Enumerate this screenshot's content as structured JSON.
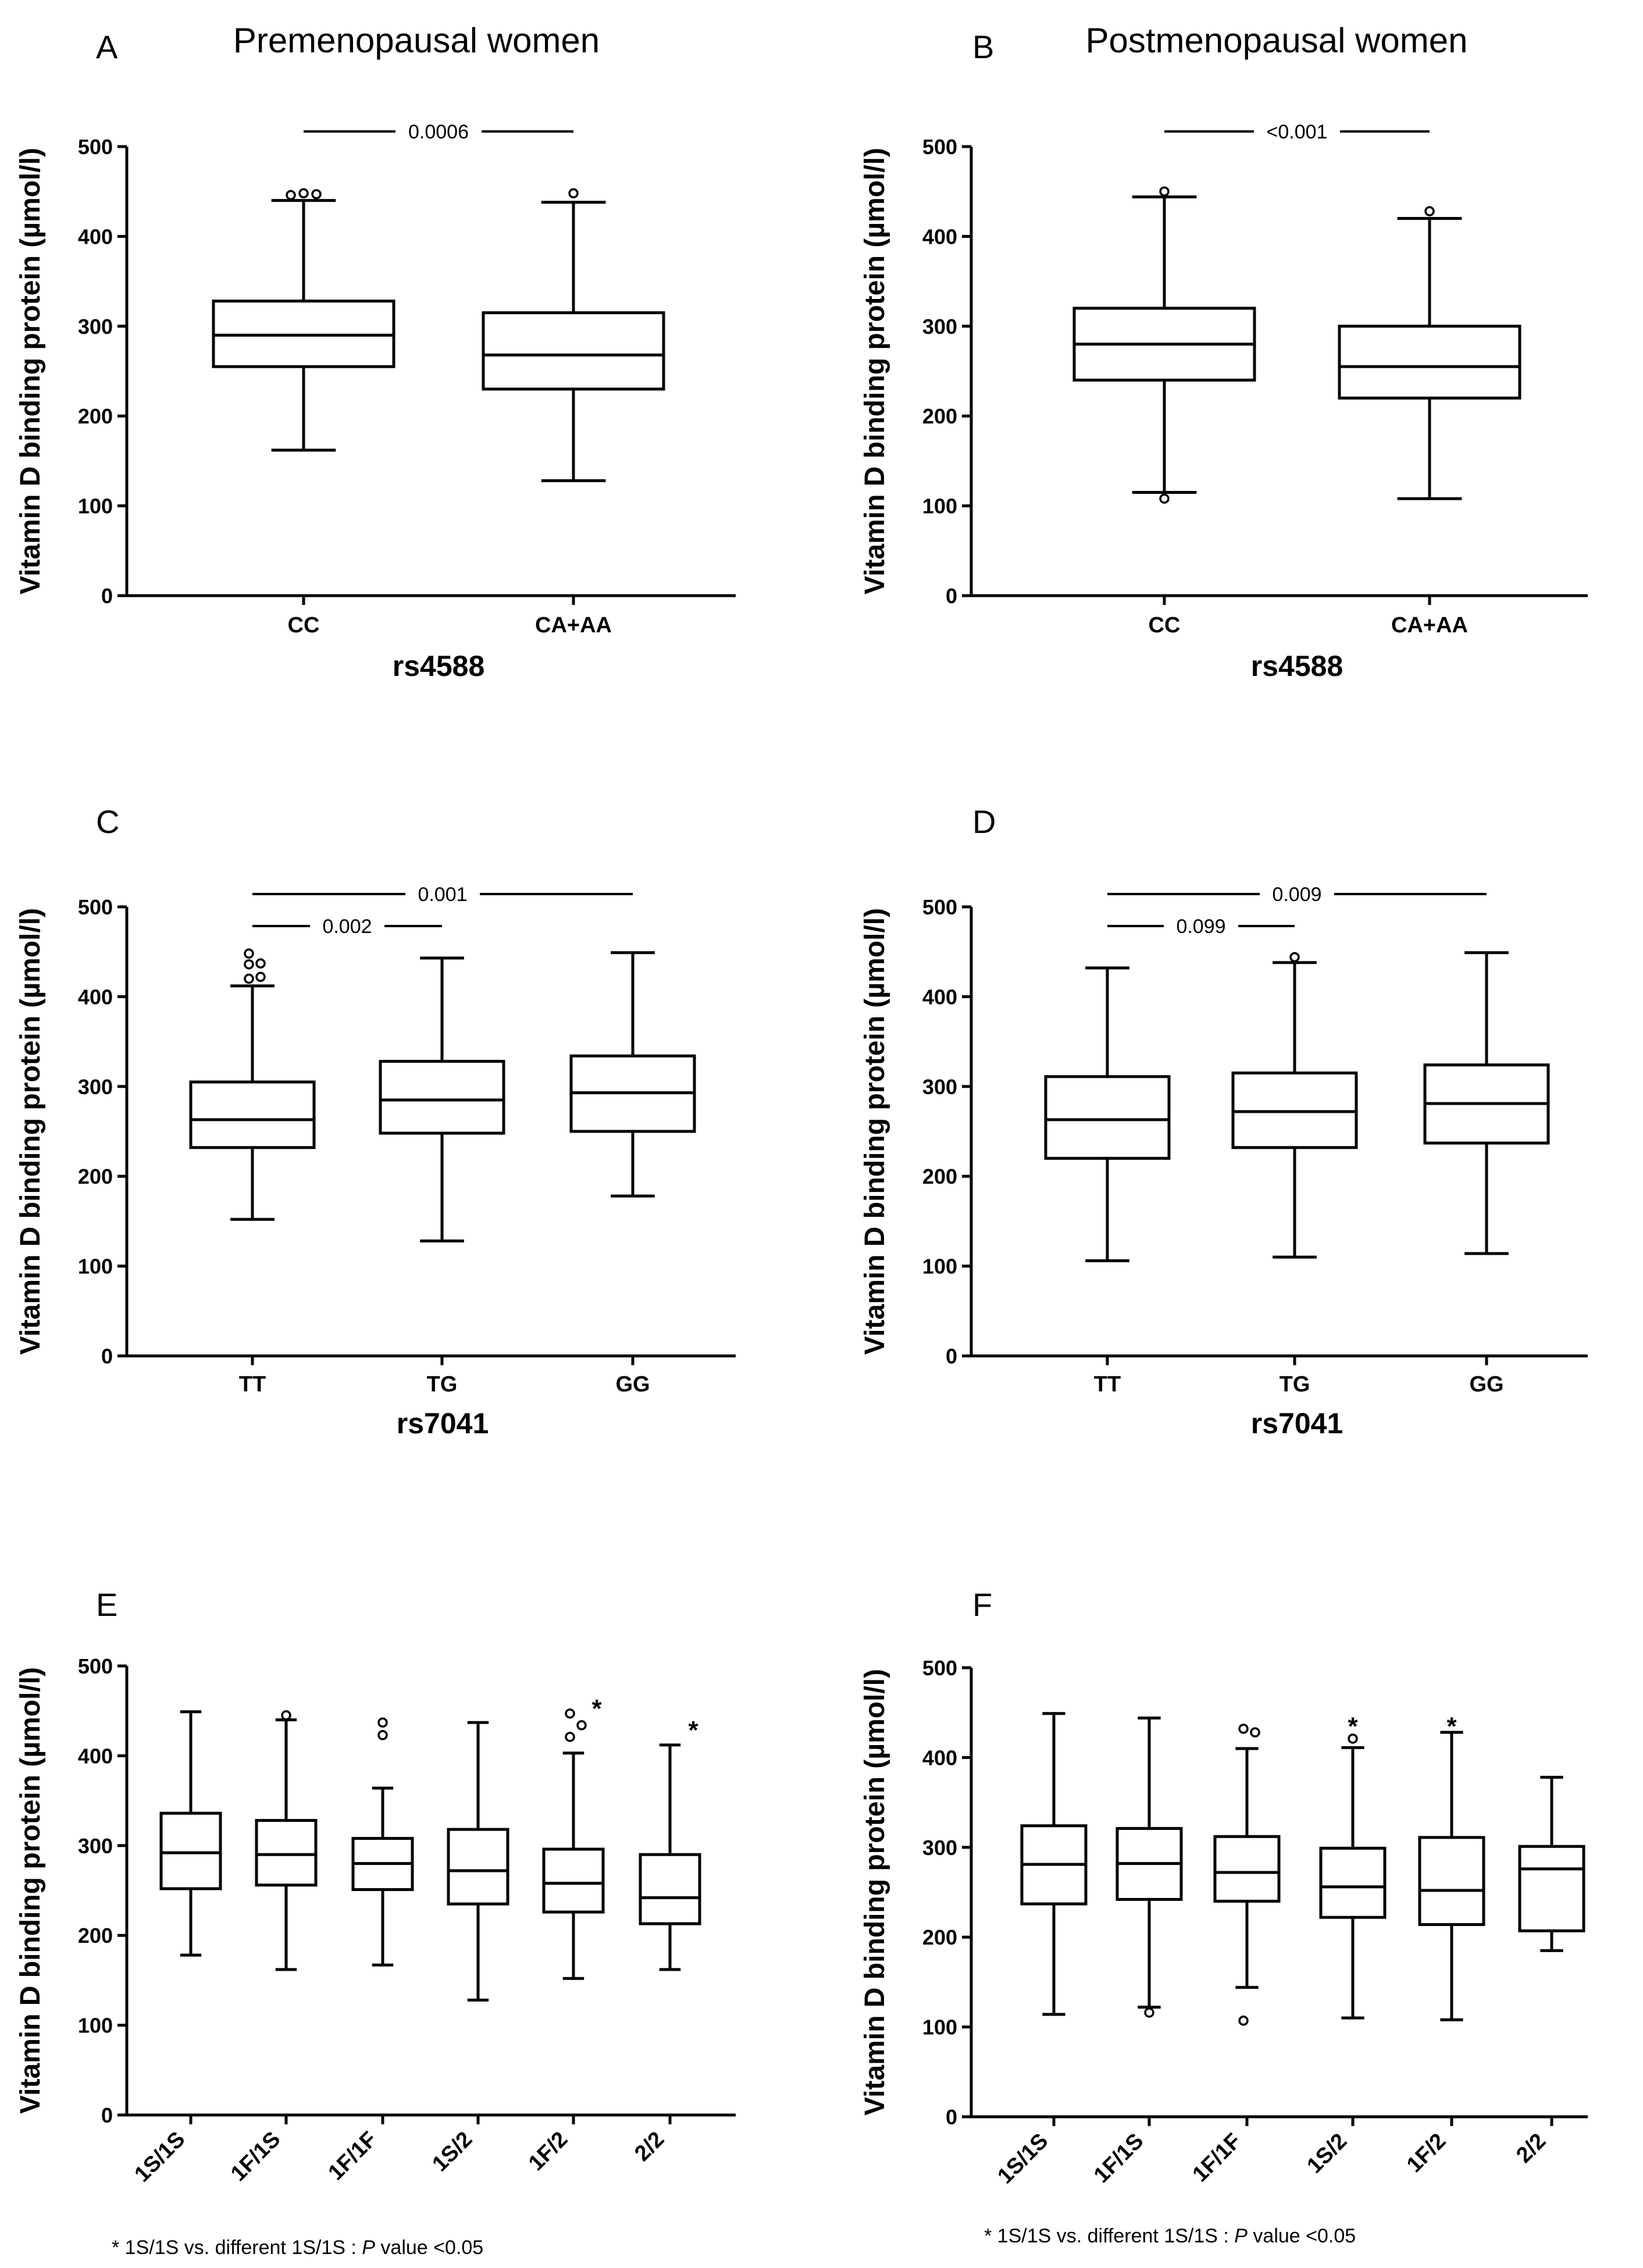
{
  "titles": {
    "left": "Premenopausal women",
    "right": "Postmenopausal women"
  },
  "footnotes": {
    "prefix": "* 1S/1S vs. different 1S/1S : ",
    "p": "P",
    "suffix": " value <0.05"
  },
  "chart_data": [
    {
      "panel": "A",
      "type": "box",
      "title": "Premenopausal women",
      "ylabel": "Vitamin D binding protein (µmol/l)",
      "xlabel": "rs4588",
      "ylim": [
        0,
        500
      ],
      "yticks": [
        0,
        100,
        200,
        300,
        400,
        500
      ],
      "categories": [
        "CC",
        "CA+AA"
      ],
      "boxes": [
        {
          "whisker_low": 162,
          "q1": 255,
          "median": 290,
          "q3": 328,
          "whisker_high": 440,
          "outliers": [
            446,
            448,
            447
          ]
        },
        {
          "whisker_low": 128,
          "q1": 230,
          "median": 268,
          "q3": 315,
          "whisker_high": 438,
          "outliers": [
            448
          ]
        }
      ],
      "comparisons": [
        {
          "from": 0,
          "to": 1,
          "label": "0.0006"
        }
      ],
      "annotations": []
    },
    {
      "panel": "B",
      "type": "box",
      "title": "Postmenopausal women",
      "ylabel": "Vitamin D binding protein (µmol/l)",
      "xlabel": "rs4588",
      "ylim": [
        0,
        500
      ],
      "yticks": [
        0,
        100,
        200,
        300,
        400,
        500
      ],
      "categories": [
        "CC",
        "CA+AA"
      ],
      "boxes": [
        {
          "whisker_low": 115,
          "q1": 240,
          "median": 280,
          "q3": 320,
          "whisker_high": 444,
          "outliers": [
            108,
            450
          ]
        },
        {
          "whisker_low": 108,
          "q1": 220,
          "median": 255,
          "q3": 300,
          "whisker_high": 420,
          "outliers": [
            428
          ]
        }
      ],
      "comparisons": [
        {
          "from": 0,
          "to": 1,
          "label": "<0.001"
        }
      ],
      "annotations": []
    },
    {
      "panel": "C",
      "type": "box",
      "ylabel": "Vitamin D binding protein (µmol/l)",
      "xlabel": "rs7041",
      "ylim": [
        0,
        500
      ],
      "yticks": [
        0,
        100,
        200,
        300,
        400,
        500
      ],
      "categories": [
        "TT",
        "TG",
        "GG"
      ],
      "boxes": [
        {
          "whisker_low": 152,
          "q1": 232,
          "median": 263,
          "q3": 305,
          "whisker_high": 412,
          "outliers": [
            420,
            422,
            436,
            437,
            448
          ]
        },
        {
          "whisker_low": 128,
          "q1": 248,
          "median": 285,
          "q3": 328,
          "whisker_high": 443,
          "outliers": []
        },
        {
          "whisker_low": 178,
          "q1": 250,
          "median": 293,
          "q3": 334,
          "whisker_high": 449,
          "outliers": []
        }
      ],
      "comparisons": [
        {
          "from": 0,
          "to": 2,
          "label": "0.001"
        },
        {
          "from": 0,
          "to": 1,
          "label": "0.002"
        }
      ],
      "annotations": []
    },
    {
      "panel": "D",
      "type": "box",
      "ylabel": "Vitamin D binding protein (µmol/l)",
      "xlabel": "rs7041",
      "ylim": [
        0,
        500
      ],
      "yticks": [
        0,
        100,
        200,
        300,
        400,
        500
      ],
      "categories": [
        "TT",
        "TG",
        "GG"
      ],
      "boxes": [
        {
          "whisker_low": 106,
          "q1": 220,
          "median": 263,
          "q3": 311,
          "whisker_high": 432,
          "outliers": []
        },
        {
          "whisker_low": 110,
          "q1": 232,
          "median": 272,
          "q3": 315,
          "whisker_high": 438,
          "outliers": [
            444
          ]
        },
        {
          "whisker_low": 114,
          "q1": 237,
          "median": 281,
          "q3": 324,
          "whisker_high": 449,
          "outliers": []
        }
      ],
      "comparisons": [
        {
          "from": 0,
          "to": 2,
          "label": "0.009"
        },
        {
          "from": 0,
          "to": 1,
          "label": "0.099"
        }
      ],
      "annotations": []
    },
    {
      "panel": "E",
      "type": "box",
      "ylabel": "Vitamin D binding protein (µmol/l)",
      "xlabel": "",
      "ylim": [
        0,
        500
      ],
      "yticks": [
        0,
        100,
        200,
        300,
        400,
        500
      ],
      "categories": [
        "1S/1S",
        "1F/1S",
        "1F/1F",
        "1S/2",
        "1F/2",
        "2/2"
      ],
      "boxes": [
        {
          "whisker_low": 178,
          "q1": 252,
          "median": 292,
          "q3": 336,
          "whisker_high": 449,
          "outliers": []
        },
        {
          "whisker_low": 162,
          "q1": 256,
          "median": 290,
          "q3": 328,
          "whisker_high": 440,
          "outliers": [
            445
          ]
        },
        {
          "whisker_low": 167,
          "q1": 251,
          "median": 280,
          "q3": 308,
          "whisker_high": 364,
          "outliers": [
            423,
            437
          ]
        },
        {
          "whisker_low": 128,
          "q1": 235,
          "median": 272,
          "q3": 318,
          "whisker_high": 437,
          "outliers": []
        },
        {
          "whisker_low": 152,
          "q1": 226,
          "median": 258,
          "q3": 296,
          "whisker_high": 403,
          "outliers": [
            421,
            434,
            447
          ]
        },
        {
          "whisker_low": 162,
          "q1": 213,
          "median": 242,
          "q3": 290,
          "whisker_high": 412,
          "outliers": []
        }
      ],
      "comparisons": [],
      "annotations": [
        {
          "index": 4,
          "label": "*",
          "value": 456
        },
        {
          "index": 5,
          "label": "*",
          "value": 432
        }
      ]
    },
    {
      "panel": "F",
      "type": "box",
      "ylabel": "Vitamin D binding protein (µmol/l)",
      "xlabel": "",
      "ylim": [
        0,
        500
      ],
      "yticks": [
        0,
        100,
        200,
        300,
        400,
        500
      ],
      "categories": [
        "1S/1S",
        "1F/1S",
        "1F/1F",
        "1S/2",
        "1F/2",
        "2/2"
      ],
      "boxes": [
        {
          "whisker_low": 114,
          "q1": 237,
          "median": 281,
          "q3": 324,
          "whisker_high": 449,
          "outliers": []
        },
        {
          "whisker_low": 122,
          "q1": 242,
          "median": 282,
          "q3": 321,
          "whisker_high": 444,
          "outliers": [
            116
          ]
        },
        {
          "whisker_low": 144,
          "q1": 240,
          "median": 272,
          "q3": 312,
          "whisker_high": 410,
          "outliers": [
            107,
            428,
            432
          ]
        },
        {
          "whisker_low": 110,
          "q1": 222,
          "median": 256,
          "q3": 299,
          "whisker_high": 411,
          "outliers": [
            421
          ]
        },
        {
          "whisker_low": 108,
          "q1": 214,
          "median": 252,
          "q3": 311,
          "whisker_high": 428,
          "outliers": []
        },
        {
          "whisker_low": 185,
          "q1": 207,
          "median": 276,
          "q3": 301,
          "whisker_high": 378,
          "outliers": []
        }
      ],
      "comparisons": [],
      "annotations": [
        {
          "index": 3,
          "label": "*",
          "value": 438
        },
        {
          "index": 4,
          "label": "*",
          "value": 438
        }
      ]
    }
  ]
}
